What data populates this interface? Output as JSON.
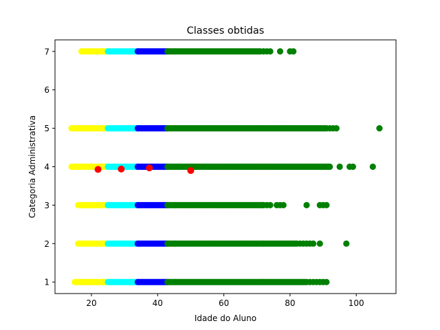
{
  "chart_data": {
    "type": "scatter",
    "title": "Classes obtidas",
    "xlabel": "Idade do Aluno",
    "ylabel": "Categoria Administrativa",
    "xlim": [
      9,
      112
    ],
    "ylim": [
      0.7,
      7.3
    ],
    "x_ticks": [
      20,
      40,
      60,
      80,
      100
    ],
    "y_ticks": [
      1,
      2,
      3,
      4,
      5,
      6,
      7
    ],
    "grid": false,
    "legend": "none",
    "colors": {
      "class_1": "#ffff00",
      "class_2": "#00ffff",
      "class_3": "#0000ff",
      "class_4": "#008000",
      "centroids": "#ff0000"
    },
    "series": [
      {
        "color": "#ffff00",
        "ranges": [
          {
            "y": 1,
            "x_min": 15,
            "x_max": 25
          },
          {
            "y": 2,
            "x_min": 16,
            "x_max": 25
          },
          {
            "y": 3,
            "x_min": 16,
            "x_max": 25
          },
          {
            "y": 4,
            "x_min": 14,
            "x_max": 25
          },
          {
            "y": 5,
            "x_min": 14,
            "x_max": 25
          },
          {
            "y": 7,
            "x_min": 17,
            "x_max": 25
          }
        ]
      },
      {
        "color": "#00ffff",
        "ranges": [
          {
            "y": 1,
            "x_min": 25,
            "x_max": 34
          },
          {
            "y": 2,
            "x_min": 25,
            "x_max": 34
          },
          {
            "y": 3,
            "x_min": 25,
            "x_max": 34
          },
          {
            "y": 4,
            "x_min": 25,
            "x_max": 34
          },
          {
            "y": 5,
            "x_min": 25,
            "x_max": 34
          },
          {
            "y": 7,
            "x_min": 25,
            "x_max": 34
          }
        ]
      },
      {
        "color": "#0000ff",
        "ranges": [
          {
            "y": 1,
            "x_min": 34,
            "x_max": 43
          },
          {
            "y": 2,
            "x_min": 34,
            "x_max": 43
          },
          {
            "y": 3,
            "x_min": 34,
            "x_max": 43
          },
          {
            "y": 4,
            "x_min": 34,
            "x_max": 43
          },
          {
            "y": 5,
            "x_min": 34,
            "x_max": 43
          },
          {
            "y": 7,
            "x_min": 34,
            "x_max": 43
          }
        ]
      },
      {
        "color": "#008000",
        "ranges": [
          {
            "y": 1,
            "x_min": 43,
            "x_max": 85
          },
          {
            "y": 2,
            "x_min": 43,
            "x_max": 82
          },
          {
            "y": 3,
            "x_min": 43,
            "x_max": 72
          },
          {
            "y": 4,
            "x_min": 43,
            "x_max": 92
          },
          {
            "y": 5,
            "x_min": 43,
            "x_max": 91
          },
          {
            "y": 7,
            "x_min": 43,
            "x_max": 71
          }
        ],
        "points": [
          {
            "x": 86,
            "y": 1
          },
          {
            "x": 87,
            "y": 1
          },
          {
            "x": 88,
            "y": 1
          },
          {
            "x": 89,
            "y": 1
          },
          {
            "x": 90,
            "y": 1
          },
          {
            "x": 91,
            "y": 1
          },
          {
            "x": 83,
            "y": 2
          },
          {
            "x": 84,
            "y": 2
          },
          {
            "x": 85,
            "y": 2
          },
          {
            "x": 86,
            "y": 2
          },
          {
            "x": 87,
            "y": 2
          },
          {
            "x": 89,
            "y": 2
          },
          {
            "x": 97,
            "y": 2
          },
          {
            "x": 73,
            "y": 3
          },
          {
            "x": 74,
            "y": 3
          },
          {
            "x": 76,
            "y": 3
          },
          {
            "x": 77,
            "y": 3
          },
          {
            "x": 78,
            "y": 3
          },
          {
            "x": 85,
            "y": 3
          },
          {
            "x": 89,
            "y": 3
          },
          {
            "x": 90,
            "y": 3
          },
          {
            "x": 91,
            "y": 3
          },
          {
            "x": 95,
            "y": 4
          },
          {
            "x": 98,
            "y": 4
          },
          {
            "x": 99,
            "y": 4
          },
          {
            "x": 105,
            "y": 4
          },
          {
            "x": 92,
            "y": 5
          },
          {
            "x": 93,
            "y": 5
          },
          {
            "x": 94,
            "y": 5
          },
          {
            "x": 107,
            "y": 5
          },
          {
            "x": 72,
            "y": 7
          },
          {
            "x": 73,
            "y": 7
          },
          {
            "x": 74,
            "y": 7
          },
          {
            "x": 77,
            "y": 7
          },
          {
            "x": 80,
            "y": 7
          },
          {
            "x": 81,
            "y": 7
          }
        ]
      }
    ],
    "centroids": {
      "color": "#ff0000",
      "points": [
        {
          "x": 22,
          "y": 3.93
        },
        {
          "x": 29,
          "y": 3.94
        },
        {
          "x": 37.5,
          "y": 3.97
        },
        {
          "x": 50,
          "y": 3.9
        }
      ]
    }
  }
}
